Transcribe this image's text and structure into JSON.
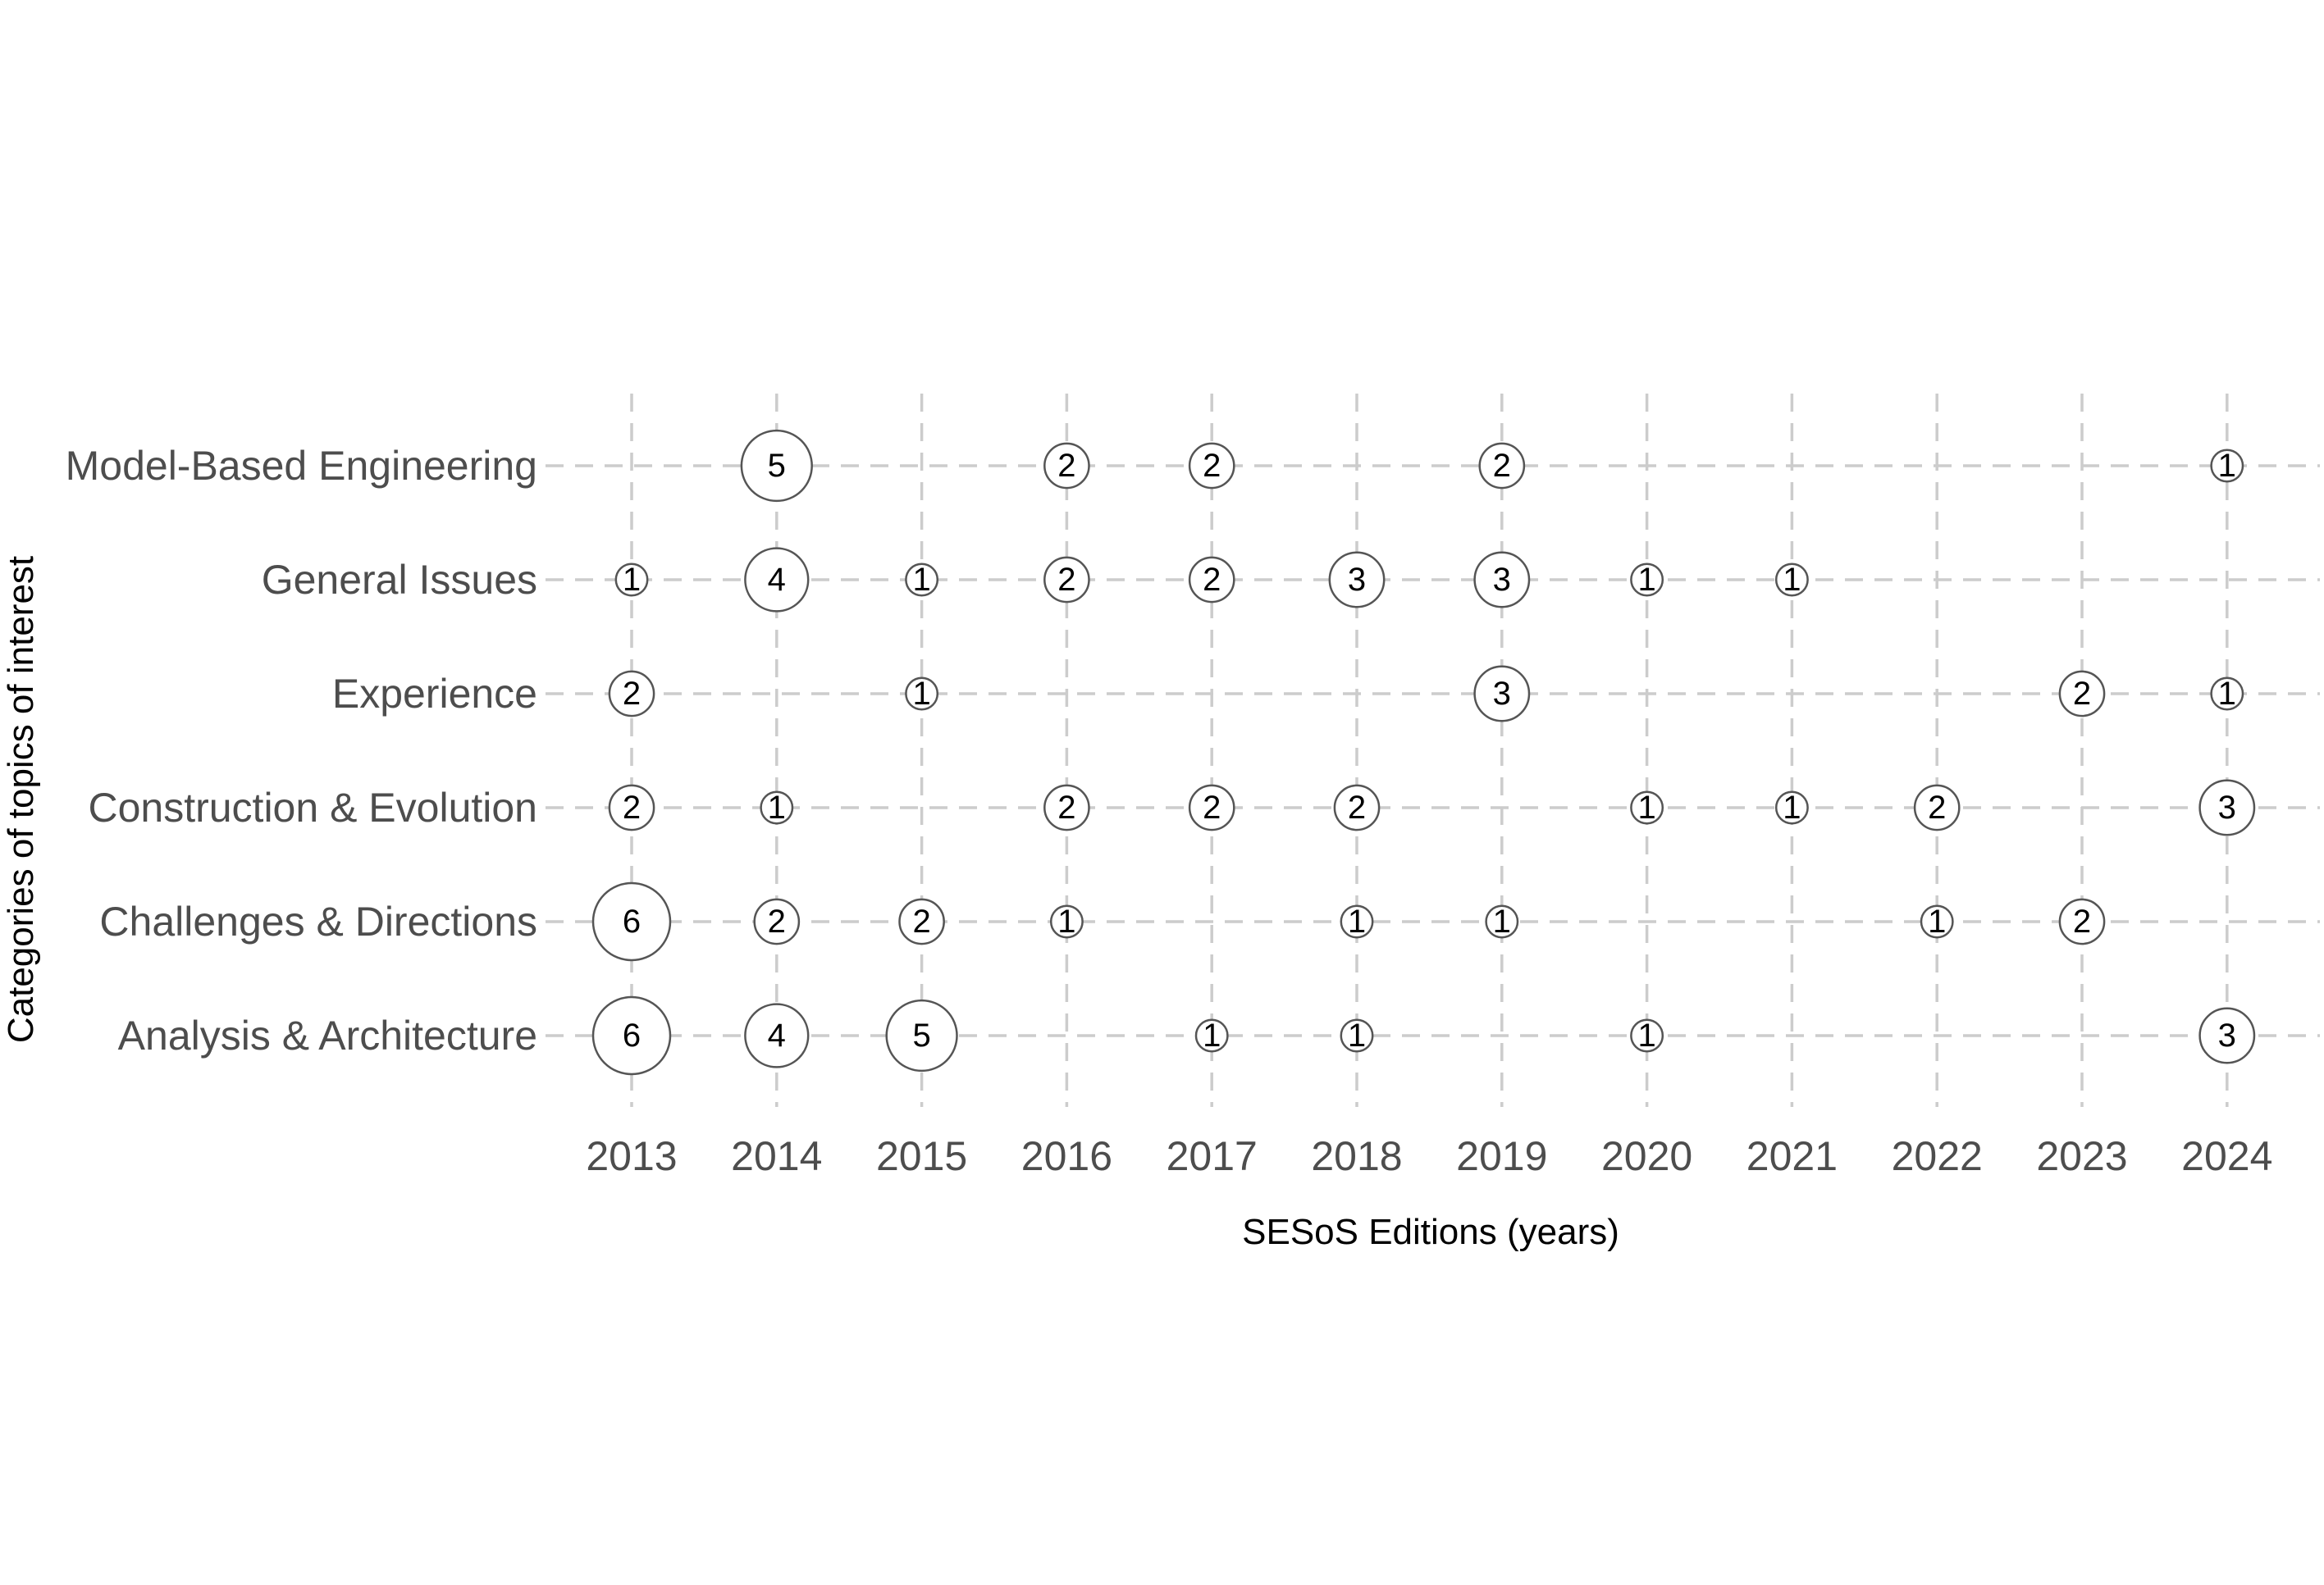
{
  "chart_data": {
    "type": "scatter",
    "subtype": "bubble",
    "xlabel": "SESoS Editions (years)",
    "ylabel": "Categories of topics of interest",
    "x": [
      "2013",
      "2014",
      "2015",
      "2016",
      "2017",
      "2018",
      "2019",
      "2020",
      "2021",
      "2022",
      "2023",
      "2024"
    ],
    "categories": [
      "Analysis & Architecture",
      "Challenges & Directions",
      "Construction & Evolution",
      "Experience",
      "General Issues",
      "Model-Based Engineering"
    ],
    "points": [
      {
        "x": "2014",
        "y": "Model-Based Engineering",
        "value": 5
      },
      {
        "x": "2016",
        "y": "Model-Based Engineering",
        "value": 2
      },
      {
        "x": "2017",
        "y": "Model-Based Engineering",
        "value": 2
      },
      {
        "x": "2019",
        "y": "Model-Based Engineering",
        "value": 2
      },
      {
        "x": "2024",
        "y": "Model-Based Engineering",
        "value": 1
      },
      {
        "x": "2013",
        "y": "General Issues",
        "value": 1
      },
      {
        "x": "2014",
        "y": "General Issues",
        "value": 4
      },
      {
        "x": "2015",
        "y": "General Issues",
        "value": 1
      },
      {
        "x": "2016",
        "y": "General Issues",
        "value": 2
      },
      {
        "x": "2017",
        "y": "General Issues",
        "value": 2
      },
      {
        "x": "2018",
        "y": "General Issues",
        "value": 3
      },
      {
        "x": "2019",
        "y": "General Issues",
        "value": 3
      },
      {
        "x": "2020",
        "y": "General Issues",
        "value": 1
      },
      {
        "x": "2021",
        "y": "General Issues",
        "value": 1
      },
      {
        "x": "2013",
        "y": "Experience",
        "value": 2
      },
      {
        "x": "2015",
        "y": "Experience",
        "value": 1
      },
      {
        "x": "2019",
        "y": "Experience",
        "value": 3
      },
      {
        "x": "2023",
        "y": "Experience",
        "value": 2
      },
      {
        "x": "2024",
        "y": "Experience",
        "value": 1
      },
      {
        "x": "2013",
        "y": "Construction & Evolution",
        "value": 2
      },
      {
        "x": "2014",
        "y": "Construction & Evolution",
        "value": 1
      },
      {
        "x": "2016",
        "y": "Construction & Evolution",
        "value": 2
      },
      {
        "x": "2017",
        "y": "Construction & Evolution",
        "value": 2
      },
      {
        "x": "2018",
        "y": "Construction & Evolution",
        "value": 2
      },
      {
        "x": "2020",
        "y": "Construction & Evolution",
        "value": 1
      },
      {
        "x": "2021",
        "y": "Construction & Evolution",
        "value": 1
      },
      {
        "x": "2022",
        "y": "Construction & Evolution",
        "value": 2
      },
      {
        "x": "2024",
        "y": "Construction & Evolution",
        "value": 3
      },
      {
        "x": "2013",
        "y": "Challenges & Directions",
        "value": 6
      },
      {
        "x": "2014",
        "y": "Challenges & Directions",
        "value": 2
      },
      {
        "x": "2015",
        "y": "Challenges & Directions",
        "value": 2
      },
      {
        "x": "2016",
        "y": "Challenges & Directions",
        "value": 1
      },
      {
        "x": "2018",
        "y": "Challenges & Directions",
        "value": 1
      },
      {
        "x": "2019",
        "y": "Challenges & Directions",
        "value": 1
      },
      {
        "x": "2022",
        "y": "Challenges & Directions",
        "value": 1
      },
      {
        "x": "2023",
        "y": "Challenges & Directions",
        "value": 2
      },
      {
        "x": "2013",
        "y": "Analysis & Architecture",
        "value": 6
      },
      {
        "x": "2014",
        "y": "Analysis & Architecture",
        "value": 4
      },
      {
        "x": "2015",
        "y": "Analysis & Architecture",
        "value": 5
      },
      {
        "x": "2017",
        "y": "Analysis & Architecture",
        "value": 1
      },
      {
        "x": "2018",
        "y": "Analysis & Architecture",
        "value": 1
      },
      {
        "x": "2020",
        "y": "Analysis & Architecture",
        "value": 1
      },
      {
        "x": "2024",
        "y": "Analysis & Architecture",
        "value": 3
      }
    ],
    "grid": true,
    "grid_style": "dashed",
    "legend": "none",
    "colors": {
      "grid": "#cccccc",
      "bubble_fill": "#ffffff",
      "bubble_stroke": "#555555",
      "tick_text": "#4d4d4d",
      "label_text": "#000000"
    }
  }
}
